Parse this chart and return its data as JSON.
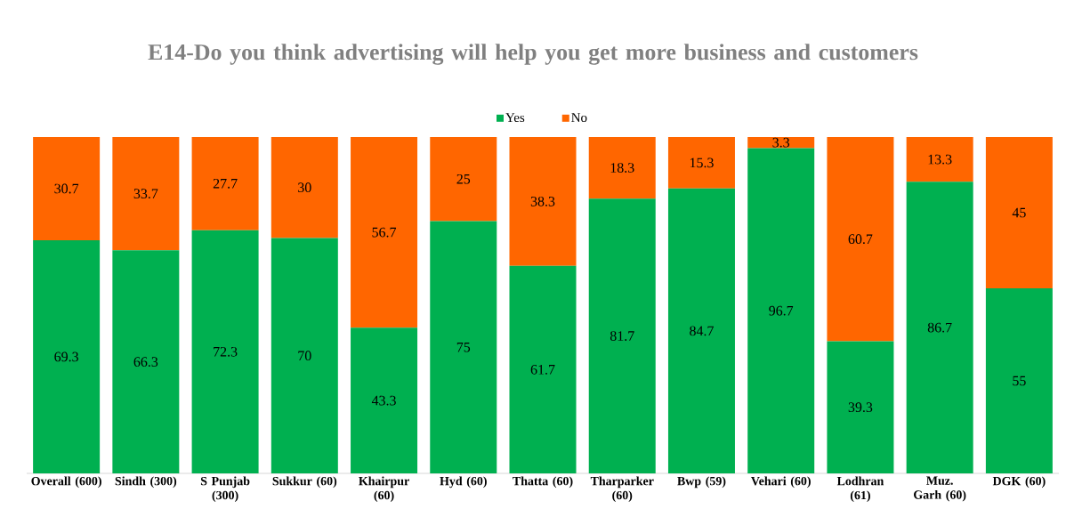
{
  "chart_data": {
    "type": "bar",
    "title": "E14-Do you think advertising will help you get more business and customers",
    "categories": [
      "Overall (600)",
      "Sindh (300)",
      "S Punjab (300)",
      "Sukkur (60)",
      "Khairpur (60)",
      "Hyd (60)",
      "Thatta (60)",
      "Tharparker (60)",
      "Bwp (59)",
      "Vehari (60)",
      "Lodhran (61)",
      "Muz. Garh (60)",
      "DGK (60)"
    ],
    "series": [
      {
        "name": "Yes",
        "color": "#00b050",
        "values": [
          69.3,
          66.3,
          72.3,
          70,
          43.3,
          75,
          61.7,
          81.7,
          84.7,
          96.7,
          39.3,
          86.7,
          55
        ]
      },
      {
        "name": "No",
        "color": "#ff6600",
        "values": [
          30.7,
          33.7,
          27.7,
          30,
          56.7,
          25,
          38.3,
          18.3,
          15.3,
          3.3,
          60.7,
          13.3,
          45
        ]
      }
    ],
    "ylim": [
      0,
      100
    ],
    "tick_labels": "x",
    "stacked": true,
    "data_labels": true,
    "legend": "top"
  }
}
